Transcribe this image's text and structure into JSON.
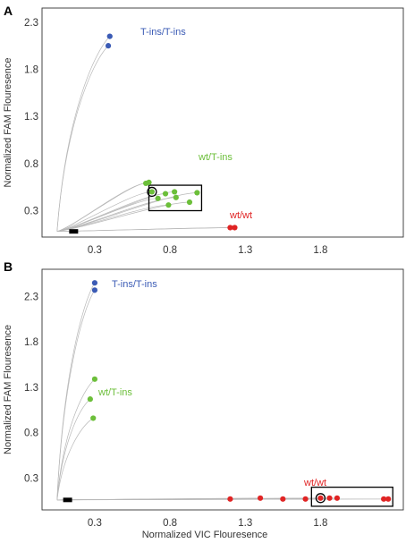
{
  "chart_data": [
    {
      "panel": "A",
      "type": "scatter",
      "xlabel": "",
      "ylabel": "Normalized FAM Flouresence",
      "x_ticks": [
        "0.3",
        "0.8",
        "1.3",
        "1.8"
      ],
      "y_ticks": [
        "2.3",
        "1.8",
        "1.3",
        "0.8",
        "0.3"
      ],
      "xlim": [
        -0.05,
        2.35
      ],
      "ylim": [
        0.02,
        2.45
      ],
      "origin": [
        0.05,
        0.08
      ],
      "marker": [
        0.16,
        0.08
      ],
      "grid": false,
      "series": [
        {
          "name": "T-ins/T-ins",
          "color": "#3b5bb5",
          "points": [
            [
              0.4,
              2.15
            ],
            [
              0.39,
              2.05
            ]
          ]
        },
        {
          "name": "wt/T-ins",
          "color": "#6cbf3a",
          "points": [
            [
              0.64,
              0.59
            ],
            [
              0.66,
              0.6
            ],
            [
              0.68,
              0.5
            ],
            [
              0.72,
              0.43
            ],
            [
              0.77,
              0.48
            ],
            [
              0.79,
              0.36
            ],
            [
              0.83,
              0.5
            ],
            [
              0.84,
              0.44
            ],
            [
              0.93,
              0.39
            ],
            [
              0.98,
              0.49
            ]
          ]
        },
        {
          "name": "wt/wt",
          "color": "#e02424",
          "points": [
            [
              1.2,
              0.12
            ],
            [
              1.23,
              0.12
            ]
          ]
        }
      ],
      "highlight_box": {
        "x": [
          0.66,
          1.01
        ],
        "y": [
          0.3,
          0.57
        ]
      },
      "circled_point": [
        0.68,
        0.5
      ]
    },
    {
      "panel": "B",
      "type": "scatter",
      "xlabel": "Normalized VIC Flouresence",
      "ylabel": "Normalized FAM Flouresence",
      "x_ticks": [
        "0.3",
        "0.8",
        "1.3",
        "1.8"
      ],
      "y_ticks": [
        "2.3",
        "1.8",
        "1.3",
        "0.8",
        "0.3"
      ],
      "xlim": [
        -0.05,
        2.35
      ],
      "ylim": [
        -0.05,
        2.6
      ],
      "origin": [
        0.05,
        0.06
      ],
      "marker": [
        0.12,
        0.06
      ],
      "grid": false,
      "series": [
        {
          "name": "T-ins/T-ins",
          "color": "#3b5bb5",
          "points": [
            [
              0.3,
              2.45
            ],
            [
              0.3,
              2.37
            ]
          ]
        },
        {
          "name": "wt/T-ins",
          "color": "#6cbf3a",
          "points": [
            [
              0.3,
              1.39
            ],
            [
              0.27,
              1.17
            ],
            [
              0.29,
              0.96
            ]
          ]
        },
        {
          "name": "wt/wt",
          "color": "#e02424",
          "points": [
            [
              1.2,
              0.07
            ],
            [
              1.4,
              0.08
            ],
            [
              1.55,
              0.07
            ],
            [
              1.7,
              0.07
            ],
            [
              1.8,
              0.08
            ],
            [
              1.86,
              0.08
            ],
            [
              1.91,
              0.08
            ],
            [
              2.22,
              0.07
            ],
            [
              2.25,
              0.07
            ]
          ]
        }
      ],
      "highlight_box": {
        "x": [
          1.74,
          2.28
        ],
        "y": [
          -0.01,
          0.2
        ]
      },
      "circled_point": [
        1.8,
        0.08
      ]
    }
  ]
}
